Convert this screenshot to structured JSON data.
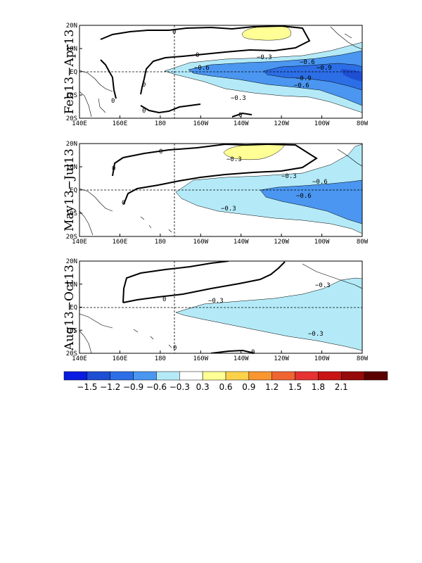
{
  "panels": [
    {
      "title": "Feb13−Apr13",
      "contour_labels": [
        "0",
        "0",
        "0",
        "0",
        "0",
        "0",
        "−0.3",
        "−0.3",
        "−0.6",
        "−0.6",
        "−0.6",
        "−0.9",
        "−0.9"
      ]
    },
    {
      "title": "May13−Jul13",
      "contour_labels": [
        "0",
        "0",
        "0",
        "−0.3",
        "−0.3",
        "−0.3",
        "−0.6",
        "−0.6"
      ]
    },
    {
      "title": "Aug13−Oct13",
      "contour_labels": [
        "0",
        "0",
        "0",
        "−0.3",
        "−0.3",
        "−0.3"
      ]
    }
  ],
  "axes": {
    "lon_ticks": [
      "140E",
      "160E",
      "180",
      "160W",
      "140W",
      "120W",
      "100W",
      "80W"
    ],
    "lat_ticks": [
      "20N",
      "10N",
      "EQ",
      "10S",
      "20S"
    ]
  },
  "colorbar": {
    "colors": [
      "#0a1ce0",
      "#1e4ed2",
      "#2c6ee6",
      "#4a96f0",
      "#b4eaf8",
      "#ffffff",
      "#ffff96",
      "#fcd24a",
      "#fa9632",
      "#f06432",
      "#e63232",
      "#c81414",
      "#960a0a",
      "#5a0000"
    ],
    "labels": [
      "−1.5",
      "−1.2",
      "−0.9",
      "−0.6",
      "−0.3",
      "0.3",
      "0.6",
      "0.9",
      "1.2",
      "1.5",
      "1.8",
      "2.1"
    ]
  }
}
